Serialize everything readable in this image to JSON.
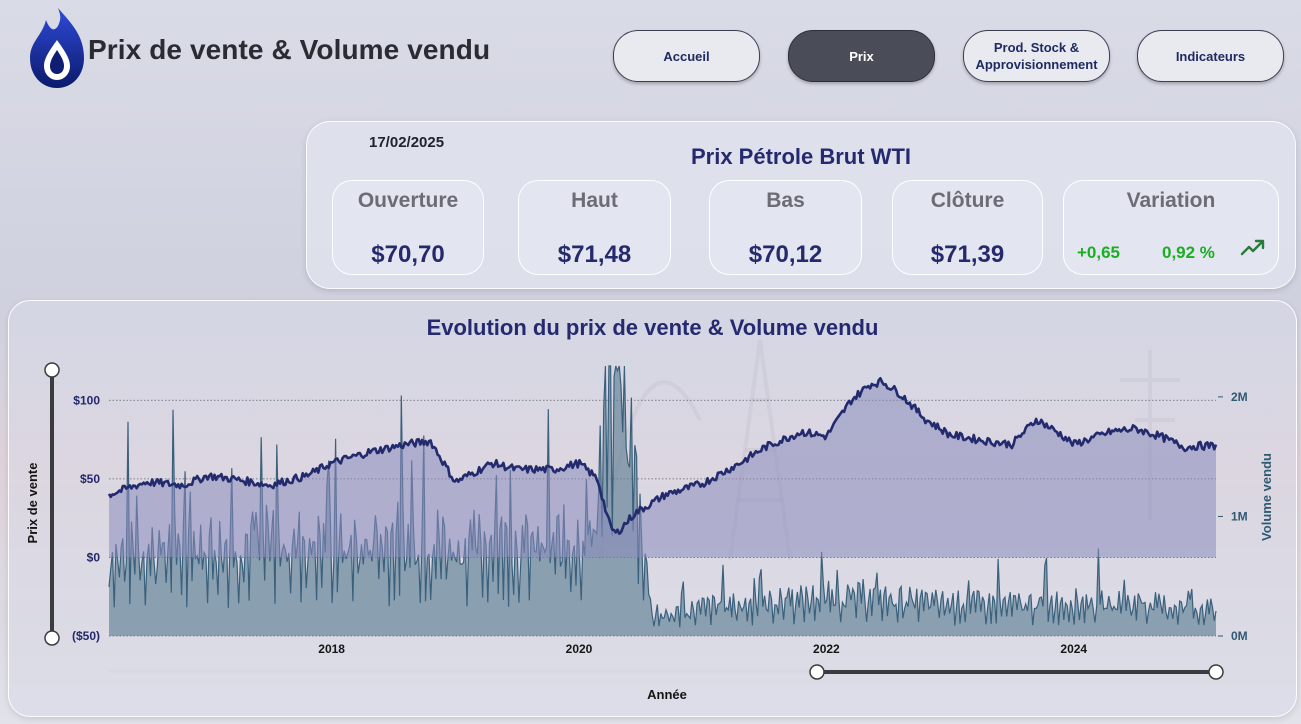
{
  "header": {
    "title": "Prix de vente & Volume vendu"
  },
  "nav": {
    "items": [
      {
        "label": "Accueil",
        "active": false
      },
      {
        "label": "Prix",
        "active": true
      },
      {
        "label": "Prod. Stock &\nApprovisionnement",
        "active": false
      },
      {
        "label": "Indicateurs",
        "active": false
      }
    ]
  },
  "kpi": {
    "date": "17/02/2025",
    "title": "Prix Pétrole Brut WTI",
    "open_label": "Ouverture",
    "open_value": "$70,70",
    "high_label": "Haut",
    "high_value": "$71,48",
    "low_label": "Bas",
    "low_value": "$70,12",
    "close_label": "Clôture",
    "close_value": "$71,39",
    "variation_label": "Variation",
    "variation_abs": "+0,65",
    "variation_pct": "0,92 %",
    "variation_icon": "trend-up-icon",
    "accent_color": "#26296c",
    "positive_color": "#18b020"
  },
  "chart_data": {
    "type": "area",
    "title": "Evolution du prix de vente & Volume vendu",
    "xlabel": "Année",
    "ylabel": "Prix de vente",
    "y2label": "Volume vendu",
    "x_ticks": [
      "2018",
      "2020",
      "2022",
      "2024"
    ],
    "y_ticks": [
      "($50)",
      "$0",
      "$50",
      "$100"
    ],
    "y_tick_values": [
      -50,
      0,
      50,
      100
    ],
    "y2_ticks": [
      "0M",
      "1M",
      "2M"
    ],
    "y2_tick_values": [
      0,
      1000000,
      2000000
    ],
    "ylim": [
      -50,
      125
    ],
    "y2lim": [
      0,
      2300000
    ],
    "xlim": [
      2016.2,
      2025.15
    ],
    "series": [
      {
        "name": "Prix de vente",
        "color": "#232a6e",
        "fill": "#8a8cbe",
        "x": [
          2016.2,
          2016.5,
          2016.8,
          2017.0,
          2017.2,
          2017.5,
          2017.8,
          2018.0,
          2018.3,
          2018.6,
          2018.8,
          2019.0,
          2019.3,
          2019.5,
          2019.8,
          2020.0,
          2020.15,
          2020.25,
          2020.3,
          2020.45,
          2020.7,
          2021.0,
          2021.3,
          2021.5,
          2021.8,
          2022.0,
          2022.2,
          2022.35,
          2022.45,
          2022.6,
          2022.8,
          2023.0,
          2023.3,
          2023.5,
          2023.7,
          2023.9,
          2024.0,
          2024.3,
          2024.5,
          2024.7,
          2024.9,
          2025.0,
          2025.15
        ],
        "y": [
          40,
          48,
          46,
          52,
          50,
          46,
          52,
          60,
          67,
          72,
          74,
          48,
          60,
          56,
          56,
          60,
          50,
          20,
          15,
          28,
          40,
          47,
          60,
          70,
          80,
          77,
          100,
          110,
          112,
          104,
          88,
          78,
          74,
          72,
          88,
          78,
          72,
          80,
          82,
          77,
          70,
          71,
          71
        ]
      },
      {
        "name": "Volume vendu",
        "color": "#3a607c",
        "fill": "#5f7f93",
        "x": [
          2016.2,
          2016.5,
          2016.8,
          2017.2,
          2017.5,
          2017.8,
          2018.2,
          2018.5,
          2018.8,
          2019.2,
          2019.5,
          2019.8,
          2020.1,
          2020.3,
          2020.6,
          2021.0,
          2021.5,
          2022.0,
          2022.5,
          2023.0,
          2023.5,
          2024.0,
          2024.5,
          2025.15
        ],
        "y": [
          600000,
          650000,
          700000,
          680000,
          720000,
          700000,
          680000,
          740000,
          720000,
          700000,
          690000,
          700000,
          750000,
          2300000,
          130000,
          220000,
          250000,
          300000,
          280000,
          250000,
          240000,
          260000,
          250000,
          200000
        ]
      }
    ],
    "grid": true,
    "legend": "none"
  }
}
